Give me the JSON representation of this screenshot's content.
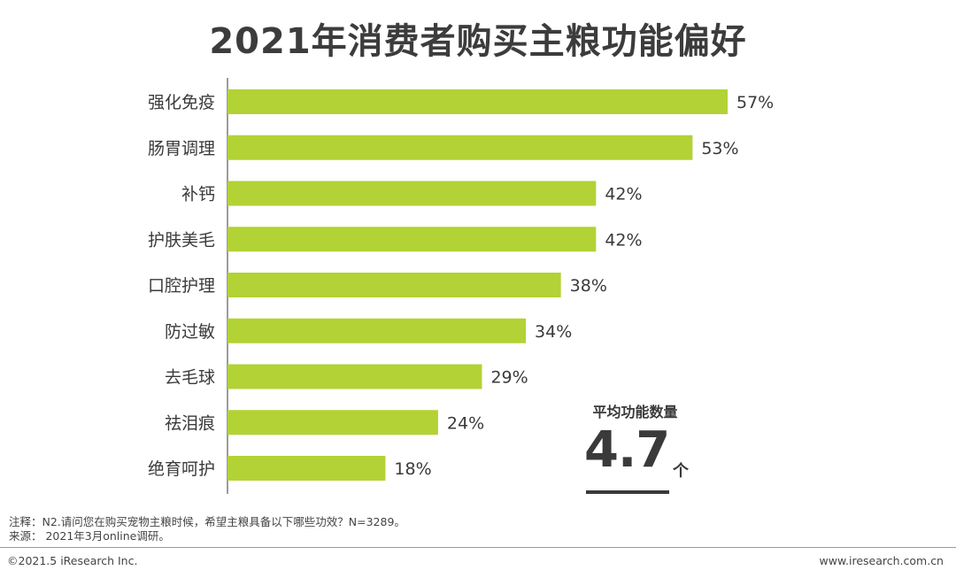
{
  "title": "2021年消费者购买主粮功能偏好",
  "chart_data": {
    "type": "bar",
    "orientation": "horizontal",
    "title": "2021年消费者购买主粮功能偏好",
    "categories": [
      "强化免疫",
      "肠胃调理",
      "补钙",
      "护肤美毛",
      "口腔护理",
      "防过敏",
      "去毛球",
      "祛泪痕",
      "绝育呵护"
    ],
    "values": [
      57,
      53,
      42,
      42,
      38,
      34,
      29,
      24,
      18
    ],
    "value_labels": [
      "57%",
      "53%",
      "42%",
      "42%",
      "38%",
      "34%",
      "29%",
      "24%",
      "18%"
    ],
    "unit": "%",
    "xlim": [
      0,
      60
    ],
    "bar_color": "#b2d235",
    "axis_color": "#7a7a7a"
  },
  "average": {
    "label": "平均功能数量",
    "value": "4.7",
    "unit": "个"
  },
  "notes": {
    "note": "注释：N2.请问您在购买宠物主粮时候，希望主粮具备以下哪些功效？N=3289。",
    "source": "来源：  2021年3月online调研。"
  },
  "footer": {
    "copyright": "©2021.5 iResearch Inc.",
    "website": "www.iresearch.com.cn"
  }
}
